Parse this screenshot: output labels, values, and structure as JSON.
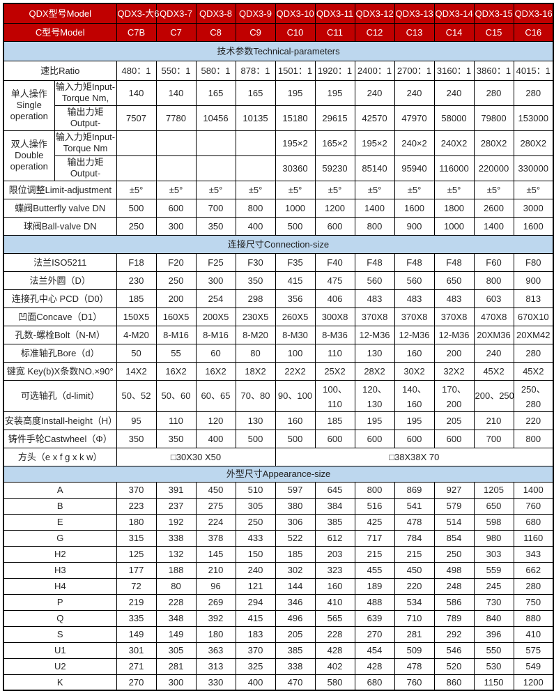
{
  "colors": {
    "header_bg": "#C00000",
    "header_text": "#FFFFFF",
    "band_bg": "#BDD7EE",
    "border": "#000000",
    "text": "#262626"
  },
  "table": {
    "header": {
      "model_row_label": "QDX型号Model",
      "c_row_label": "C型号Model",
      "models": [
        "QDX3-大6",
        "QDX3-7",
        "QDX3-8",
        "QDX3-9",
        "QDX3-10",
        "QDX3-11",
        "QDX3-12",
        "QDX3-13",
        "QDX3-14",
        "QDX3-15",
        "QDX3-16"
      ],
      "c_models": [
        "C7B",
        "C7",
        "C8",
        "C9",
        "C10",
        "C11",
        "C12",
        "C13",
        "C14",
        "C15",
        "C16"
      ]
    },
    "sections": [
      {
        "title": "技术参数Technical-parameters",
        "class": "sec-tech",
        "rows": [
          {
            "type": "simple",
            "label": "速比Ratio",
            "values": [
              "480：1",
              "550：1",
              "580：1",
              "878：1",
              "1501：1",
              "1920：1",
              "2400：1",
              "2700：1",
              "3160：1",
              "3860：1",
              "4015：1"
            ]
          },
          {
            "type": "group",
            "group": "单人操作\nSingle\noperation",
            "sub": [
              {
                "label": "输入力矩Input-Torque Nm,",
                "h": "t36",
                "values": [
                  "140",
                  "140",
                  "165",
                  "165",
                  "195",
                  "195",
                  "240",
                  "240",
                  "240",
                  "280",
                  "280"
                ]
              },
              {
                "label": "输出力矩\nOutput-",
                "h": "t36",
                "values": [
                  "7507",
                  "7780",
                  "10456",
                  "10135",
                  "15180",
                  "29615",
                  "42570",
                  "47970",
                  "58000",
                  "79800",
                  "153000"
                ]
              }
            ]
          },
          {
            "type": "group",
            "group": "双人操作\nDouble\noperation",
            "sub": [
              {
                "label": "输入力矩Input-Torque Nm",
                "h": "t36",
                "values": [
                  "",
                  "",
                  "",
                  "",
                  "195×2",
                  "165×2",
                  "195×2",
                  "240×2",
                  "240X2",
                  "280X2",
                  "280X2"
                ]
              },
              {
                "label": "输出力矩\nOutput-",
                "h": "t36",
                "values": [
                  "",
                  "",
                  "",
                  "",
                  "30360",
                  "59230",
                  "85140",
                  "95940",
                  "116000",
                  "220000",
                  "330000"
                ]
              }
            ]
          },
          {
            "type": "simple",
            "label": "限位调整Limit-adjustment",
            "h": "t26",
            "values": [
              "±5°",
              "±5°",
              "±5°",
              "±5°",
              "±5°",
              "±5°",
              "±5°",
              "±5°",
              "±5°",
              "±5°",
              "±5°"
            ]
          },
          {
            "type": "simple",
            "label": "蝶阀Butterfly valve DN",
            "h": "t26",
            "values": [
              "500",
              "600",
              "700",
              "800",
              "1000",
              "1200",
              "1400",
              "1600",
              "1800",
              "2600",
              "3000"
            ]
          },
          {
            "type": "simple",
            "label": "球阀Ball-valve DN",
            "h": "t26",
            "values": [
              "250",
              "300",
              "350",
              "400",
              "500",
              "600",
              "800",
              "900",
              "1000",
              "1400",
              "1600"
            ]
          }
        ]
      },
      {
        "title": "连接尺寸Connection-size",
        "class": "sec-conn",
        "rows": [
          {
            "type": "simple",
            "label": "法兰ISO5211",
            "values": [
              "F18",
              "F20",
              "F25",
              "F30",
              "F35",
              "F40",
              "F48",
              "F48",
              "F48",
              "F60",
              "F80"
            ]
          },
          {
            "type": "simple",
            "label": "法兰外圆（D）",
            "values": [
              "230",
              "250",
              "300",
              "350",
              "415",
              "475",
              "560",
              "560",
              "650",
              "800",
              "900"
            ]
          },
          {
            "type": "simple",
            "label": "连接孔中心 PCD（D0）",
            "values": [
              "185",
              "200",
              "254",
              "298",
              "356",
              "406",
              "483",
              "483",
              "483",
              "603",
              "813"
            ]
          },
          {
            "type": "simple",
            "label": "凹面Concave（D1）",
            "values": [
              "150X5",
              "160X5",
              "200X5",
              "230X5",
              "260X5",
              "300X8",
              "370X8",
              "370X8",
              "370X8",
              "470X8",
              "670X10"
            ]
          },
          {
            "type": "simple",
            "label": "孔数-螺栓Bolt（N-M）",
            "values": [
              "4-M20",
              "8-M16",
              "8-M16",
              "8-M20",
              "8-M30",
              "8-M36",
              "12-M36",
              "12-M36",
              "12-M36",
              "20XM36",
              "20XM42"
            ]
          },
          {
            "type": "simple",
            "label": "标准轴孔Bore（d）",
            "values": [
              "50",
              "55",
              "60",
              "80",
              "100",
              "110",
              "130",
              "160",
              "200",
              "240",
              "280"
            ]
          },
          {
            "type": "simple",
            "label": "键宽 Key(b)X条数NO.×90°",
            "values": [
              "14X2",
              "16X2",
              "16X2",
              "18X2",
              "22X2",
              "25X2",
              "28X2",
              "30X2",
              "32X2",
              "45X2",
              "45X2"
            ]
          },
          {
            "type": "simple",
            "label": "可选轴孔（d-limit）",
            "values": [
              "50、52",
              "50、60",
              "60、65",
              "70、80",
              "90、100",
              "100、\n110",
              "120、\n130",
              "140、\n160",
              "170、\n200",
              "200、250",
              "250、\n280"
            ]
          },
          {
            "type": "simple",
            "label": "安装高度Install-height（H）",
            "values": [
              "95",
              "110",
              "120",
              "130",
              "160",
              "185",
              "195",
              "195",
              "205",
              "210",
              "220"
            ]
          },
          {
            "type": "simple",
            "label": "铸件手轮Castwheel（Φ）",
            "values": [
              "350",
              "350",
              "400",
              "500",
              "500",
              "600",
              "600",
              "600",
              "600",
              "700",
              "800"
            ]
          },
          {
            "type": "span",
            "label": "方头（e x f g x k w）",
            "spans": [
              {
                "text": "□30X30 X50",
                "cols": 4
              },
              {
                "text": "□38X38X 70",
                "cols": 7
              }
            ]
          }
        ]
      },
      {
        "title": "外型尺寸Appearance-size",
        "class": "sec-app",
        "rows": [
          {
            "type": "simple",
            "label": "A",
            "values": [
              "370",
              "391",
              "450",
              "510",
              "597",
              "645",
              "800",
              "869",
              "927",
              "1205",
              "1400"
            ]
          },
          {
            "type": "simple",
            "label": "B",
            "values": [
              "223",
              "237",
              "275",
              "305",
              "380",
              "384",
              "516",
              "541",
              "579",
              "650",
              "760"
            ]
          },
          {
            "type": "simple",
            "label": "E",
            "values": [
              "180",
              "192",
              "224",
              "250",
              "306",
              "385",
              "425",
              "478",
              "514",
              "598",
              "680"
            ]
          },
          {
            "type": "simple",
            "label": "G",
            "values": [
              "315",
              "338",
              "378",
              "433",
              "522",
              "612",
              "717",
              "784",
              "854",
              "980",
              "1160"
            ]
          },
          {
            "type": "simple",
            "label": "H2",
            "values": [
              "125",
              "132",
              "145",
              "150",
              "185",
              "203",
              "215",
              "215",
              "250",
              "303",
              "343"
            ]
          },
          {
            "type": "simple",
            "label": "H3",
            "values": [
              "177",
              "188",
              "210",
              "240",
              "302",
              "323",
              "455",
              "450",
              "498",
              "559",
              "662"
            ]
          },
          {
            "type": "simple",
            "label": "H4",
            "values": [
              "72",
              "80",
              "96",
              "121",
              "144",
              "160",
              "189",
              "220",
              "248",
              "245",
              "280"
            ]
          },
          {
            "type": "simple",
            "label": "P",
            "values": [
              "219",
              "228",
              "269",
              "294",
              "346",
              "410",
              "488",
              "534",
              "586",
              "730",
              "750"
            ]
          },
          {
            "type": "simple",
            "label": "Q",
            "values": [
              "335",
              "348",
              "392",
              "415",
              "496",
              "565",
              "639",
              "710",
              "789",
              "840",
              "880"
            ]
          },
          {
            "type": "simple",
            "label": "S",
            "values": [
              "149",
              "149",
              "180",
              "183",
              "205",
              "228",
              "270",
              "281",
              "292",
              "396",
              "410"
            ]
          },
          {
            "type": "simple",
            "label": "U1",
            "values": [
              "301",
              "305",
              "363",
              "370",
              "385",
              "428",
              "454",
              "509",
              "546",
              "550",
              "575"
            ]
          },
          {
            "type": "simple",
            "label": "U2",
            "values": [
              "271",
              "281",
              "313",
              "325",
              "338",
              "402",
              "428",
              "478",
              "520",
              "530",
              "549"
            ]
          },
          {
            "type": "simple",
            "label": "K",
            "values": [
              "270",
              "300",
              "330",
              "400",
              "470",
              "580",
              "680",
              "760",
              "860",
              "1150",
              "1200"
            ]
          }
        ]
      }
    ]
  }
}
